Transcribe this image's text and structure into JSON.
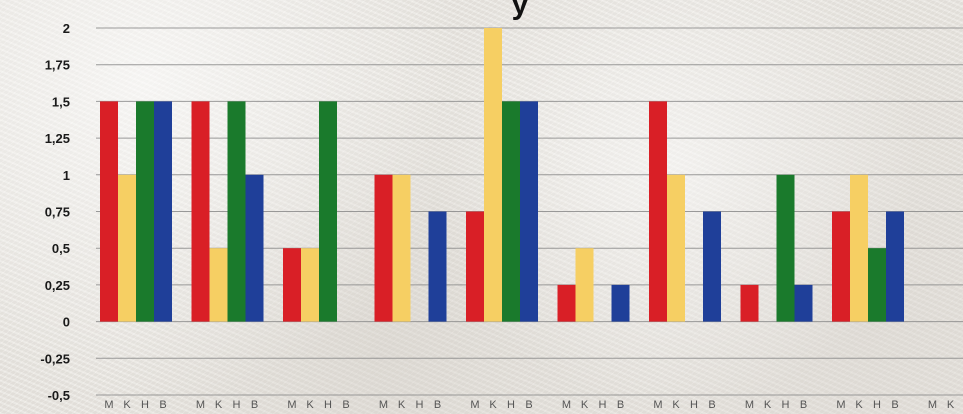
{
  "chart_data": {
    "type": "bar",
    "title_fragment": "y",
    "x_groups": 10,
    "bar_labels": [
      "M",
      "K",
      "H",
      "B"
    ],
    "series": [
      {
        "key": "M",
        "color": "#d91f26",
        "values": [
          1.5,
          1.5,
          0.5,
          1.0,
          0.75,
          0.25,
          1.5,
          0.25,
          0.75,
          0.0
        ]
      },
      {
        "key": "K",
        "color": "#f6cf63",
        "values": [
          1.0,
          0.5,
          0.5,
          1.0,
          2.0,
          0.5,
          1.0,
          0.0,
          1.0,
          0.0
        ]
      },
      {
        "key": "H",
        "color": "#1a7a2c",
        "values": [
          1.5,
          1.5,
          1.5,
          0.0,
          1.5,
          0.0,
          0.0,
          1.0,
          0.5,
          0.0
        ]
      },
      {
        "key": "B",
        "color": "#1f3f99",
        "values": [
          1.5,
          1.0,
          0.0,
          0.75,
          1.5,
          0.25,
          0.75,
          0.25,
          0.75,
          null
        ]
      }
    ],
    "ylim": [
      -0.5,
      2
    ],
    "yticks": [
      {
        "v": 2,
        "label": "2"
      },
      {
        "v": 1.75,
        "label": "1,75"
      },
      {
        "v": 1.5,
        "label": "1,5"
      },
      {
        "v": 1.25,
        "label": "1,25"
      },
      {
        "v": 1,
        "label": "1"
      },
      {
        "v": 0.75,
        "label": "0,75"
      },
      {
        "v": 0.5,
        "label": "0,5"
      },
      {
        "v": 0.25,
        "label": "0,25"
      },
      {
        "v": 0,
        "label": "0"
      },
      {
        "v": -0.25,
        "label": "-0,25"
      },
      {
        "v": -0.5,
        "label": "-0,5"
      }
    ],
    "grid": true,
    "legend": "none",
    "gridline_color": "#8a8a8a"
  }
}
